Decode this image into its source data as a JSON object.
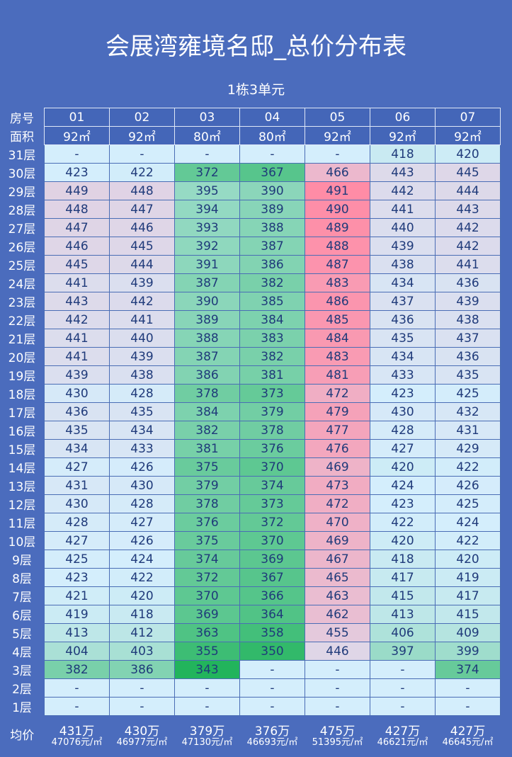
{
  "title": "会展湾雍境名邸_总价分布表",
  "subtitle": "1栋3单元",
  "chart_data": {
    "type": "heatmap",
    "title": "会展湾雍境名邸_总价分布表",
    "subtitle": "1栋3单元",
    "row_header_label": "房号",
    "area_label": "面积",
    "avg_label": "均价",
    "columns": [
      "01",
      "02",
      "03",
      "04",
      "05",
      "06",
      "07"
    ],
    "areas": [
      "92㎡",
      "92㎡",
      "80㎡",
      "80㎡",
      "92㎡",
      "92㎡",
      "92㎡"
    ],
    "colors": {
      "low": "#22b45c",
      "mid": "#d4eefc",
      "high": "#ff8ca6"
    },
    "rows": [
      {
        "floor": "31层",
        "values": [
          null,
          null,
          null,
          null,
          null,
          418,
          420
        ]
      },
      {
        "floor": "30层",
        "values": [
          423,
          422,
          372,
          367,
          466,
          443,
          445
        ]
      },
      {
        "floor": "29层",
        "values": [
          449,
          448,
          395,
          390,
          491,
          442,
          444
        ]
      },
      {
        "floor": "28层",
        "values": [
          448,
          447,
          394,
          389,
          490,
          441,
          443
        ]
      },
      {
        "floor": "27层",
        "values": [
          447,
          446,
          393,
          388,
          489,
          440,
          442
        ]
      },
      {
        "floor": "26层",
        "values": [
          446,
          445,
          392,
          387,
          488,
          439,
          442
        ]
      },
      {
        "floor": "25层",
        "values": [
          445,
          444,
          391,
          386,
          487,
          438,
          441
        ]
      },
      {
        "floor": "24层",
        "values": [
          441,
          439,
          387,
          382,
          483,
          434,
          436
        ]
      },
      {
        "floor": "23层",
        "values": [
          443,
          442,
          390,
          385,
          486,
          437,
          439
        ]
      },
      {
        "floor": "22层",
        "values": [
          442,
          441,
          389,
          384,
          485,
          436,
          438
        ]
      },
      {
        "floor": "21层",
        "values": [
          441,
          440,
          388,
          383,
          484,
          435,
          437
        ]
      },
      {
        "floor": "20层",
        "values": [
          441,
          439,
          387,
          382,
          483,
          434,
          436
        ]
      },
      {
        "floor": "19层",
        "values": [
          439,
          438,
          386,
          381,
          481,
          433,
          435
        ]
      },
      {
        "floor": "18层",
        "values": [
          430,
          428,
          378,
          373,
          472,
          423,
          425
        ]
      },
      {
        "floor": "17层",
        "values": [
          436,
          435,
          384,
          379,
          479,
          430,
          432
        ]
      },
      {
        "floor": "16层",
        "values": [
          435,
          434,
          382,
          378,
          477,
          428,
          431
        ]
      },
      {
        "floor": "15层",
        "values": [
          434,
          433,
          381,
          376,
          476,
          427,
          429
        ]
      },
      {
        "floor": "14层",
        "values": [
          427,
          426,
          375,
          370,
          469,
          420,
          422
        ]
      },
      {
        "floor": "13层",
        "values": [
          431,
          430,
          379,
          374,
          473,
          424,
          426
        ]
      },
      {
        "floor": "12层",
        "values": [
          430,
          428,
          378,
          373,
          472,
          423,
          425
        ]
      },
      {
        "floor": "11层",
        "values": [
          428,
          427,
          376,
          372,
          470,
          422,
          424
        ]
      },
      {
        "floor": "10层",
        "values": [
          427,
          426,
          375,
          370,
          469,
          420,
          422
        ]
      },
      {
        "floor": "9层",
        "values": [
          425,
          424,
          374,
          369,
          467,
          418,
          420
        ]
      },
      {
        "floor": "8层",
        "values": [
          423,
          422,
          372,
          367,
          465,
          417,
          419
        ]
      },
      {
        "floor": "7层",
        "values": [
          421,
          420,
          370,
          366,
          463,
          415,
          417
        ]
      },
      {
        "floor": "6层",
        "values": [
          419,
          418,
          369,
          364,
          462,
          413,
          415
        ]
      },
      {
        "floor": "5层",
        "values": [
          413,
          412,
          363,
          358,
          455,
          406,
          409
        ]
      },
      {
        "floor": "4层",
        "values": [
          404,
          403,
          355,
          350,
          446,
          397,
          399
        ]
      },
      {
        "floor": "3层",
        "values": [
          382,
          386,
          343,
          null,
          null,
          null,
          374
        ]
      },
      {
        "floor": "2层",
        "values": [
          null,
          null,
          null,
          null,
          null,
          null,
          null
        ]
      },
      {
        "floor": "1层",
        "values": [
          null,
          null,
          null,
          null,
          null,
          null,
          null
        ]
      }
    ],
    "empty_symbol": "-",
    "averages": [
      {
        "total": "431万",
        "unit_price": "47076元/㎡"
      },
      {
        "total": "430万",
        "unit_price": "46977元/㎡"
      },
      {
        "total": "379万",
        "unit_price": "47130元/㎡"
      },
      {
        "total": "376万",
        "unit_price": "46693元/㎡"
      },
      {
        "total": "475万",
        "unit_price": "51395元/㎡"
      },
      {
        "total": "427万",
        "unit_price": "46621元/㎡"
      },
      {
        "total": "427万",
        "unit_price": "46645元/㎡"
      }
    ]
  }
}
